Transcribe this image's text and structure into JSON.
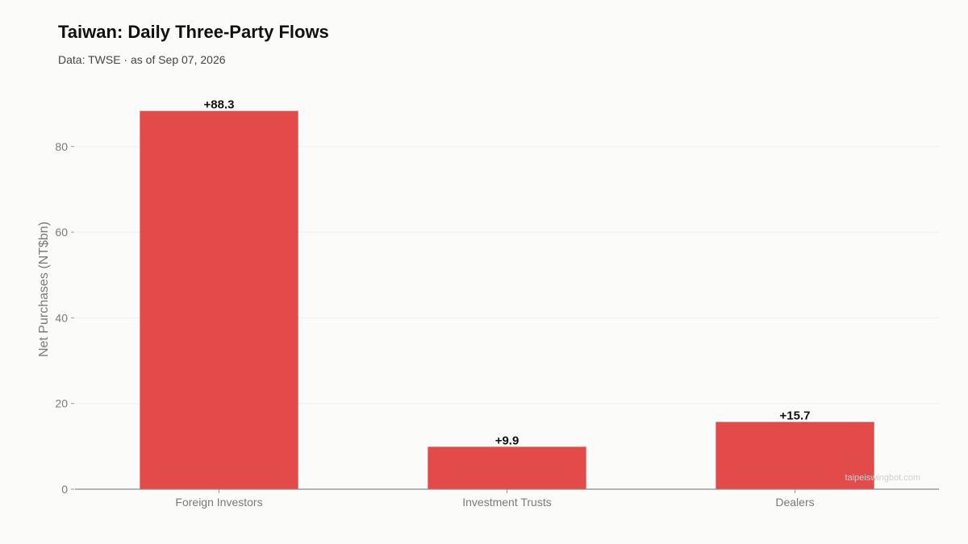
{
  "chart_data": {
    "type": "bar",
    "title": "Taiwan: Daily Three-Party Flows",
    "subtitle": "Data: TWSE · as of Sep 07, 2026",
    "xlabel": "",
    "ylabel": "Net Purchases (NT$bn)",
    "categories": [
      "Foreign Investors",
      "Investment Trusts",
      "Dealers"
    ],
    "values": [
      88.3,
      9.9,
      15.7
    ],
    "value_labels": [
      "+88.3",
      "+9.9",
      "+15.7"
    ],
    "ylim": [
      0,
      92
    ],
    "yticks": [
      0,
      20,
      40,
      60,
      80
    ],
    "ytick_labels": [
      "0",
      "20",
      "40",
      "60",
      "80"
    ],
    "grid": true,
    "bar_color": "#e34a4a",
    "watermark": "taipeiswingbot.com"
  }
}
